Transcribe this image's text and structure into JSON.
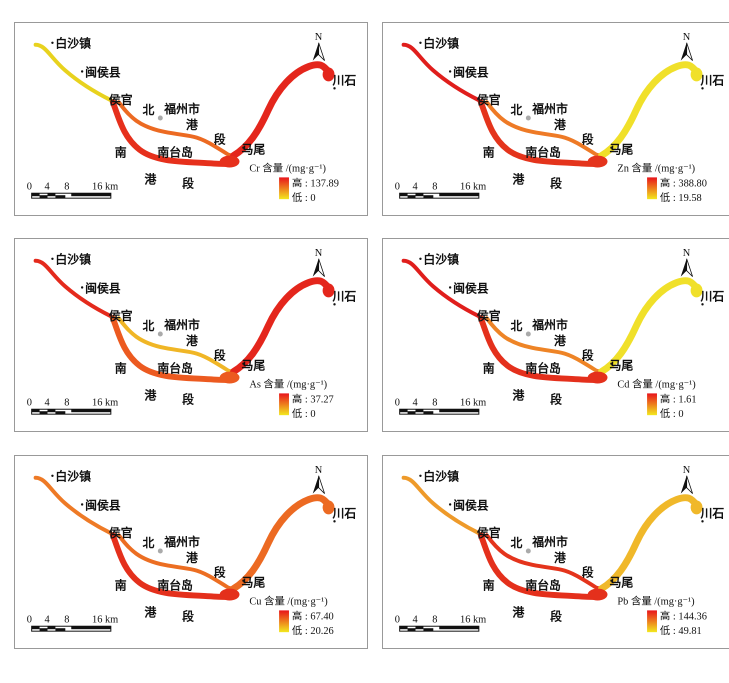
{
  "places": {
    "baishazhen": "白沙镇",
    "minhouxian": "闽侯县",
    "houguan": "侯官",
    "bei": "北",
    "fuzhou": "福州市",
    "gang": "港",
    "duan": "段",
    "nantaidao": "南台岛",
    "mawei": "马尾",
    "nan": "南",
    "chuanshi": "川石"
  },
  "north_label": "N",
  "scale_bar": {
    "ticks": [
      "0",
      "4",
      "8",
      "16 km"
    ]
  },
  "legend": {
    "unit_suffix": "含量 /(mg·g⁻¹)",
    "high_prefix": "高 : ",
    "low_prefix": "低 : ",
    "high_color": "#e8141c",
    "low_color": "#f2e81e"
  },
  "panels": [
    {
      "element": "Cr",
      "high": "137.89",
      "low": "0",
      "colors": {
        "upstream": "#e8d21e",
        "south": "#e6301c",
        "north": "#ec6a22",
        "east": "#e4261c"
      }
    },
    {
      "element": "Zn",
      "high": "388.80",
      "low": "19.58",
      "colors": {
        "upstream": "#e01e1c",
        "south": "#e4341c",
        "north": "#ee7a26",
        "east": "#f0e02a"
      }
    },
    {
      "element": "As",
      "high": "37.27",
      "low": "0",
      "colors": {
        "upstream": "#e42a1c",
        "south": "#ec5a20",
        "north": "#f0b626",
        "east": "#e4261c"
      }
    },
    {
      "element": "Cd",
      "high": "1.61",
      "low": "0",
      "colors": {
        "upstream": "#e01e1c",
        "south": "#e4301c",
        "north": "#ee8426",
        "east": "#f0e02a"
      }
    },
    {
      "element": "Cu",
      "high": "67.40",
      "low": "20.26",
      "colors": {
        "upstream": "#ee7a26",
        "south": "#e4301c",
        "north": "#ec6e22",
        "east": "#ec6a22"
      }
    },
    {
      "element": "Pb",
      "high": "144.36",
      "low": "49.81",
      "colors": {
        "upstream": "#ee9a2a",
        "south": "#e4301c",
        "north": "#e4341c",
        "east": "#f0b82a"
      }
    }
  ]
}
